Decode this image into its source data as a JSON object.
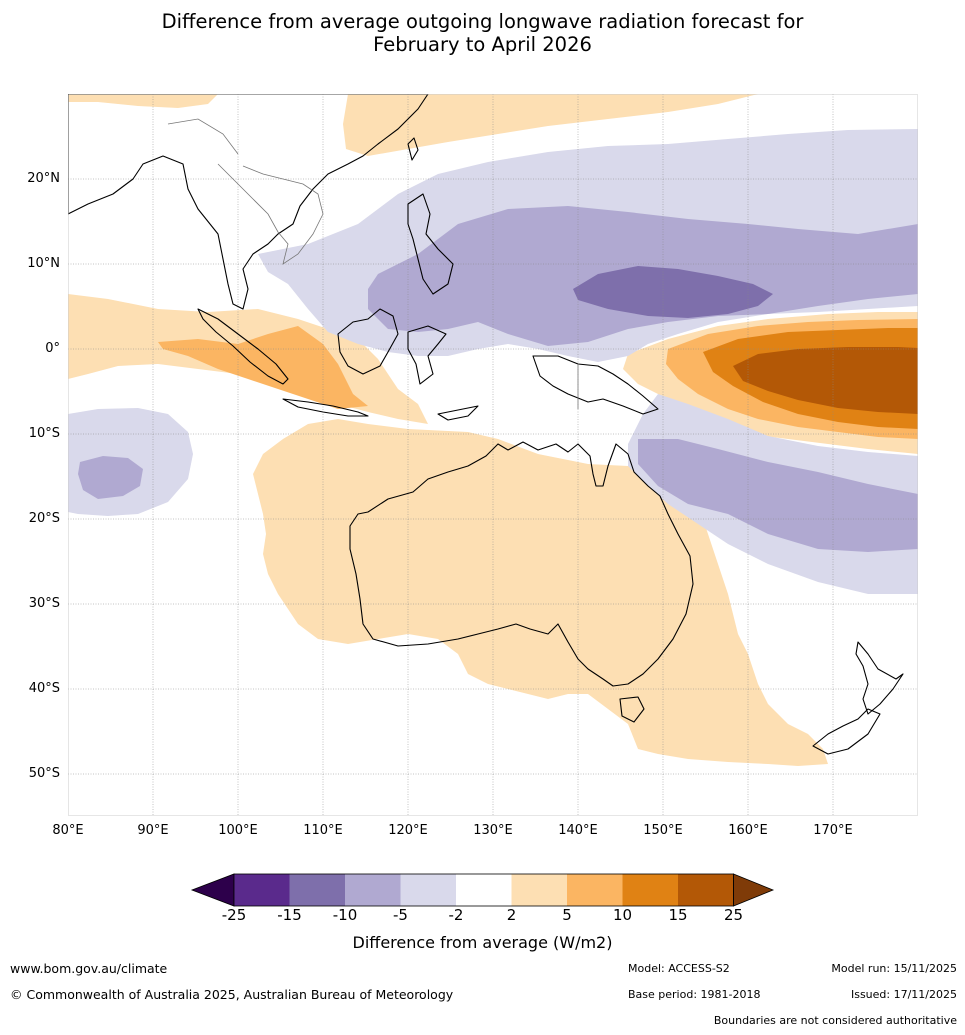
{
  "title_line1": "Difference from average outgoing longwave radiation forecast for",
  "title_line2": "February to April 2026",
  "map": {
    "lat_labels": [
      "20°N",
      "10°N",
      "0°",
      "10°S",
      "20°S",
      "30°S",
      "40°S",
      "50°S"
    ],
    "lon_labels": [
      "80°E",
      "90°E",
      "100°E",
      "110°E",
      "120°E",
      "130°E",
      "140°E",
      "150°E",
      "160°E",
      "170°E"
    ],
    "lon_range": [
      80,
      180
    ],
    "lat_range": [
      -55,
      30
    ]
  },
  "legend": {
    "ticks": [
      "-25",
      "-15",
      "-10",
      "-5",
      "-2",
      "2",
      "5",
      "10",
      "15",
      "25"
    ],
    "colors": [
      "#5a2a8c",
      "#7e6fab",
      "#b0a9d1",
      "#d9d9eb",
      "#ffffff",
      "#fddfb3",
      "#fbb562",
      "#e08214",
      "#b35806"
    ],
    "under_color": "#2d004b",
    "over_color": "#7f3b08",
    "label": "Difference from average (W/m2)"
  },
  "footer": {
    "website": "www.bom.gov.au/climate",
    "copyright": "© Commonwealth of Australia 2025, Australian Bureau of Meteorology",
    "model": "Model: ACCESS-S2",
    "base_period": "Base period: 1981-2018",
    "model_run": "Model run: 15/11/2025",
    "issued": "Issued: 17/11/2025",
    "boundaries_note": "Boundaries are not considered authoritative"
  }
}
